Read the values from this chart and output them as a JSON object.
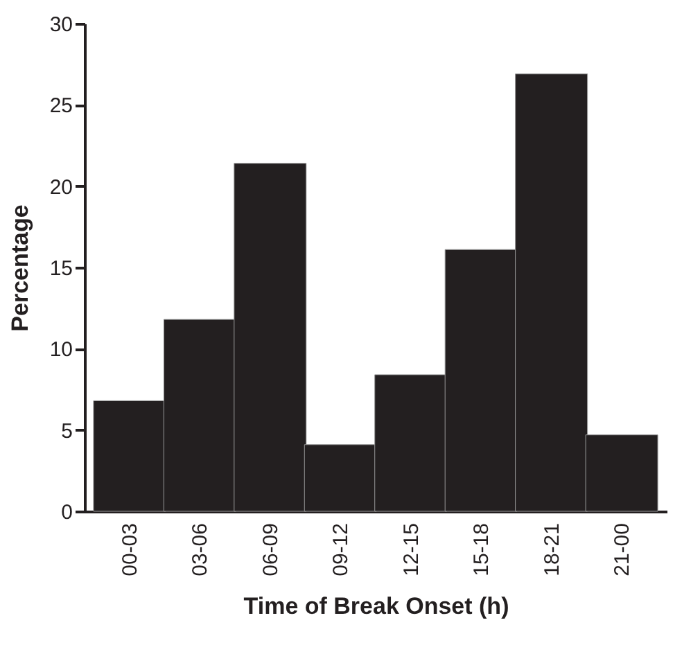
{
  "chart_data": {
    "type": "bar",
    "xlabel": "Time of Break Onset (h)",
    "ylabel": "Percentage",
    "categories": [
      "00-03",
      "03-06",
      "06-09",
      "09-12",
      "12-15",
      "15-18",
      "18-21",
      "21-00"
    ],
    "values": [
      6.8,
      11.8,
      21.4,
      4.1,
      8.4,
      16.1,
      26.9,
      4.7
    ],
    "color": "#231f20",
    "ylim": [
      0,
      30
    ],
    "yticks": [
      0,
      5,
      10,
      15,
      20,
      25,
      30
    ],
    "grid": false
  }
}
